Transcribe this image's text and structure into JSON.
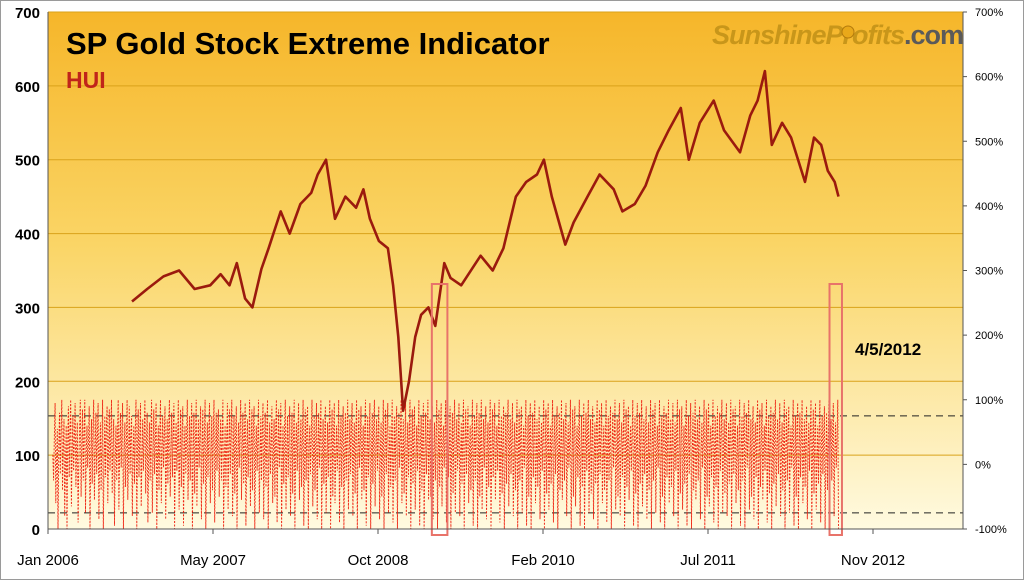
{
  "chart_data": {
    "type": "line",
    "title": "SP Gold Stock Extreme Indicator",
    "subtitle": "HUI",
    "brand": {
      "name_part1": "Sunshine",
      "name_part2": "Profits",
      "name_part3": ".com",
      "color_main": "#c8961a",
      "color_dark": "#5a5a5a"
    },
    "annotation": "4/5/2012",
    "x_ticks": [
      "Jan 2006",
      "May 2007",
      "Oct 2008",
      "Feb 2010",
      "Jul 2011",
      "Nov 2012"
    ],
    "x_range": [
      "2006-01-01",
      "2013-03-31"
    ],
    "y_left": {
      "ticks": [
        "0",
        "100",
        "200",
        "300",
        "400",
        "500",
        "600",
        "700"
      ],
      "min": 0,
      "max": 700
    },
    "y_right": {
      "ticks": [
        "-100%",
        "0%",
        "100%",
        "200%",
        "300%",
        "400%",
        "500%",
        "600%",
        "700%"
      ],
      "min": -100,
      "max": 700
    },
    "reference_lines": [
      75,
      -75
    ],
    "highlight_ranges": [
      {
        "start": "2009-01-15",
        "end": "2009-03-01"
      },
      {
        "start": "2012-03-10",
        "end": "2012-04-15"
      }
    ],
    "series": [
      {
        "color": "#9b1a0e",
        "axis": "left",
        "points": [
          [
            "2006-09-01",
            308
          ],
          [
            "2006-10-15",
            325
          ],
          [
            "2006-12-01",
            342
          ],
          [
            "2007-01-15",
            350
          ],
          [
            "2007-03-01",
            325
          ],
          [
            "2007-04-15",
            330
          ],
          [
            "2007-05-15",
            345
          ],
          [
            "2007-06-10",
            330
          ],
          [
            "2007-07-01",
            360
          ],
          [
            "2007-07-25",
            312
          ],
          [
            "2007-08-15",
            300
          ],
          [
            "2007-09-10",
            352
          ],
          [
            "2007-10-01",
            380
          ],
          [
            "2007-11-05",
            430
          ],
          [
            "2007-12-01",
            400
          ],
          [
            "2008-01-01",
            440
          ],
          [
            "2008-02-01",
            455
          ],
          [
            "2008-02-20",
            480
          ],
          [
            "2008-03-15",
            500
          ],
          [
            "2008-04-10",
            420
          ],
          [
            "2008-05-10",
            450
          ],
          [
            "2008-06-10",
            435
          ],
          [
            "2008-07-01",
            460
          ],
          [
            "2008-07-20",
            420
          ],
          [
            "2008-08-15",
            390
          ],
          [
            "2008-09-10",
            380
          ],
          [
            "2008-09-25",
            330
          ],
          [
            "2008-10-10",
            260
          ],
          [
            "2008-10-24",
            160
          ],
          [
            "2008-11-10",
            200
          ],
          [
            "2008-11-28",
            260
          ],
          [
            "2008-12-15",
            290
          ],
          [
            "2009-01-05",
            300
          ],
          [
            "2009-01-25",
            275
          ],
          [
            "2009-02-20",
            360
          ],
          [
            "2009-03-10",
            340
          ],
          [
            "2009-04-10",
            330
          ],
          [
            "2009-05-15",
            355
          ],
          [
            "2009-06-05",
            370
          ],
          [
            "2009-07-10",
            350
          ],
          [
            "2009-08-10",
            380
          ],
          [
            "2009-09-15",
            450
          ],
          [
            "2009-10-15",
            470
          ],
          [
            "2009-11-15",
            480
          ],
          [
            "2009-12-05",
            500
          ],
          [
            "2009-12-28",
            450
          ],
          [
            "2010-02-05",
            385
          ],
          [
            "2010-03-01",
            415
          ],
          [
            "2010-04-10",
            450
          ],
          [
            "2010-05-15",
            480
          ],
          [
            "2010-06-25",
            460
          ],
          [
            "2010-07-20",
            430
          ],
          [
            "2010-08-25",
            440
          ],
          [
            "2010-09-25",
            465
          ],
          [
            "2010-10-30",
            510
          ],
          [
            "2010-12-01",
            540
          ],
          [
            "2011-01-05",
            570
          ],
          [
            "2011-01-28",
            500
          ],
          [
            "2011-03-01",
            550
          ],
          [
            "2011-04-10",
            580
          ],
          [
            "2011-05-10",
            540
          ],
          [
            "2011-06-25",
            510
          ],
          [
            "2011-07-25",
            560
          ],
          [
            "2011-08-15",
            580
          ],
          [
            "2011-09-05",
            620
          ],
          [
            "2011-09-25",
            520
          ],
          [
            "2011-10-25",
            550
          ],
          [
            "2011-11-20",
            530
          ],
          [
            "2011-12-30",
            470
          ],
          [
            "2012-01-25",
            530
          ],
          [
            "2012-02-15",
            520
          ],
          [
            "2012-03-05",
            485
          ],
          [
            "2012-03-25",
            470
          ],
          [
            "2012-04-05",
            450
          ]
        ]
      }
    ],
    "oscillator": {
      "color": "#ee2211",
      "axis": "right",
      "start": "2006-01-15",
      "end": "2012-04-05",
      "clip_high": 100,
      "clip_low": -100,
      "values": [
        15,
        -25,
        40,
        95,
        -60,
        10,
        55,
        -100,
        30,
        80,
        -15,
        45,
        100,
        -40,
        20,
        70,
        -80,
        5,
        60,
        -100,
        35,
        90,
        -20,
        50,
        100,
        -65,
        15,
        75,
        -10,
        40,
        95,
        -35,
        25,
        65,
        -90,
        0,
        55,
        100,
        -50,
        30,
        85,
        -25,
        45,
        100,
        -75,
        20,
        60,
        -5,
        35,
        90,
        -100,
        10,
        70,
        -30,
        50,
        100,
        -55,
        25,
        80,
        -15,
        40,
        95,
        -85,
        15,
        65,
        -40,
        30,
        100,
        -100,
        5,
        75,
        -20,
        55,
        90,
        -60,
        20,
        85,
        -10,
        45,
        100,
        -45,
        25,
        70,
        -95,
        10,
        60,
        -25,
        40,
        100,
        -70,
        30,
        80,
        -5,
        50,
        95,
        -100,
        15,
        65,
        -35,
        35,
        100,
        -55,
        20,
        90,
        -15,
        45,
        75,
        -80,
        10,
        60,
        -30,
        55,
        100,
        -100,
        25,
        85,
        -20,
        40,
        95,
        -65,
        15,
        70,
        -10,
        50,
        100,
        -45,
        30,
        80,
        -90,
        5,
        65,
        -25,
        45,
        100,
        -75,
        20,
        85,
        -15,
        35,
        95,
        -100,
        10,
        60,
        -40,
        50,
        100,
        -60,
        25,
        75,
        -5,
        40,
        90,
        -85,
        15,
        70,
        -30,
        55,
        100,
        -50,
        20,
        80,
        -20,
        45,
        95,
        -100,
        30,
        65,
        -10,
        35,
        100,
        -70,
        15,
        85,
        -35,
        50,
        90,
        -95,
        25,
        60,
        -15,
        40,
        100,
        -55,
        10,
        75,
        -25,
        55,
        95,
        -100,
        20,
        80,
        -45,
        30,
        100,
        -65,
        15,
        70,
        -5,
        45,
        90,
        -85,
        25,
        85,
        -30,
        35,
        100,
        -100,
        10,
        65,
        -20,
        50,
        95,
        -60,
        20,
        75,
        -40,
        40,
        100,
        -90,
        15,
        80,
        -10,
        55,
        85,
        -50,
        30,
        70,
        -25,
        45,
        100,
        -100,
        5,
        60,
        -35,
        35,
        95,
        -70,
        25,
        85,
        -15,
        50,
        100,
        -80,
        20,
        75,
        -45,
        40,
        90,
        -100,
        10,
        65,
        -5,
        55,
        100,
        -55,
        30,
        80,
        -30,
        45,
        95,
        -95,
        15,
        70,
        -20,
        35,
        100,
        -65,
        25,
        85,
        -40,
        50,
        90,
        -100,
        20,
        60,
        -10,
        40,
        100,
        -75,
        10,
        75,
        -25,
        55,
        95,
        -85,
        30,
        80,
        -35,
        45,
        100,
        -100,
        15,
        65,
        -15,
        35,
        90,
        -60,
        25,
        70,
        -50,
        50,
        100,
        -90,
        20,
        85,
        -5,
        40,
        95,
        -100,
        10,
        60,
        -30,
        55,
        100,
        -70,
        30,
        75,
        -20,
        45,
        90,
        -80,
        15,
        80,
        -45,
        35,
        100,
        -100,
        25,
        65,
        -10,
        50,
        95,
        -55,
        20,
        70,
        -35,
        40,
        100,
        -95,
        10,
        85,
        -25,
        55,
        90,
        -100,
        30,
        60,
        -15,
        45,
        100,
        -65,
        15,
        75,
        -40,
        35,
        95,
        -85,
        25,
        80,
        -5,
        50,
        100,
        -100,
        20,
        70,
        -30,
        40,
        90,
        -75,
        10,
        65,
        -20,
        55,
        100,
        -100,
        30,
        85,
        -50,
        45,
        95,
        -60,
        15,
        60,
        -10,
        35,
        100,
        -90,
        25,
        75,
        -35,
        50,
        90,
        -100,
        20,
        80,
        -25,
        40,
        100,
        -70,
        10,
        70,
        -15,
        55,
        95,
        -80,
        30,
        65,
        -45,
        45,
        100,
        -100,
        15,
        85,
        -5,
        35,
        90,
        -55,
        25,
        60,
        -40,
        50,
        100,
        -95,
        20,
        75,
        -20,
        40,
        95,
        -100,
        10,
        80,
        -30,
        55,
        100,
        -65,
        30,
        70,
        -10,
        45,
        90,
        -85,
        15,
        65,
        -50,
        35,
        100,
        -100,
        25,
        85,
        -15,
        50,
        95,
        -75,
        20,
        60,
        -35,
        40,
        100,
        -90,
        10,
        75,
        -25,
        55,
        90,
        -100,
        30,
        80,
        -5,
        45,
        100,
        -60,
        15,
        70,
        -45,
        35,
        95,
        -80,
        25,
        65,
        -20,
        50,
        100,
        -100,
        20,
        85,
        -30,
        40,
        90,
        -70,
        10,
        60,
        -10,
        55,
        100,
        -95,
        30,
        75,
        -40,
        45,
        95,
        -100,
        15,
        80,
        -15,
        35,
        100,
        -55,
        25,
        70,
        -50,
        50,
        90,
        -85,
        20,
        65,
        -25,
        40,
        100,
        -100,
        10,
        85,
        -35,
        55,
        95,
        -65,
        30,
        60,
        -5,
        45,
        100,
        -90,
        15,
        75,
        -20,
        35,
        90,
        -100,
        25,
        80,
        -45,
        50,
        100,
        -75,
        20,
        70,
        -10,
        40,
        95,
        -80,
        10,
        65,
        -30,
        55,
        100,
        -100,
        30,
        85,
        -15,
        45,
        90,
        -60,
        15,
        60,
        -40,
        35,
        100,
        -95,
        25,
        75,
        -25,
        50,
        95,
        -100,
        20,
        80,
        -50,
        40,
        100,
        -70,
        10,
        70,
        -5,
        55,
        90,
        -85,
        30,
        65,
        -35,
        45,
        100,
        -100,
        15,
        85,
        -20,
        35,
        95,
        -55,
        25,
        60,
        -10,
        50,
        100,
        -90,
        20,
        75,
        -45,
        40,
        90,
        -100,
        10,
        80,
        -30,
        55,
        100,
        -65,
        30,
        70,
        -15,
        45,
        95,
        -80,
        15,
        65,
        -40,
        35,
        100,
        -100,
        25,
        85,
        -25,
        50,
        90,
        -75,
        20,
        60,
        -5,
        40,
        100,
        -95,
        10,
        75,
        -50,
        55,
        95,
        -100,
        30,
        80,
        -20,
        45,
        100,
        -60,
        15,
        70,
        -35,
        35,
        90,
        -85,
        25,
        65,
        -10,
        50,
        100,
        -100,
        20,
        85,
        -45,
        40,
        95,
        -70,
        10,
        60,
        -30,
        55,
        100,
        -90,
        30,
        75,
        -15,
        45,
        90,
        -100,
        15,
        80,
        -40,
        35,
        100,
        -55,
        25,
        70,
        -25,
        50,
        95,
        -80,
        20,
        65,
        -5,
        40,
        100,
        -100,
        10,
        85,
        -50,
        55,
        90,
        -65,
        30,
        60,
        -20,
        45,
        100,
        -95,
        15,
        75,
        -35,
        35,
        95,
        -100,
        25,
        80,
        -10,
        50,
        100,
        -75,
        20,
        70,
        -45,
        40,
        90,
        -85,
        10,
        65,
        -30,
        55,
        100,
        -100,
        30,
        85,
        -15,
        45,
        95,
        -60,
        15,
        60,
        -40,
        35,
        100,
        -90,
        25,
        75,
        -25,
        50,
        90,
        -100,
        20,
        80,
        -5,
        40,
        100,
        -70,
        10,
        70,
        -50,
        55,
        95,
        -80,
        30,
        65,
        -20,
        45,
        100,
        -100,
        15,
        85,
        -35,
        35,
        90,
        -55,
        25,
        60,
        -10,
        50,
        100,
        -95,
        20,
        75,
        -45,
        40,
        95,
        -100,
        10,
        80,
        -30,
        55,
        100,
        -65,
        30,
        70,
        -15,
        45,
        90,
        -85,
        15,
        65,
        -40,
        35,
        100,
        -100,
        25,
        85,
        -25,
        50,
        95,
        -75,
        20,
        60,
        -5,
        40,
        100,
        -90,
        10,
        75,
        -50,
        55,
        90,
        -100,
        30,
        80,
        -20,
        45,
        100,
        -60,
        15,
        70,
        -35,
        35,
        95,
        -80,
        25,
        65,
        -10,
        50,
        100,
        -100,
        20,
        85,
        -45,
        40,
        90,
        -70,
        10,
        60,
        -30,
        55,
        100,
        -95,
        30,
        75,
        -15,
        45,
        95,
        -100,
        15,
        80,
        -40,
        35,
        100,
        -55,
        25,
        70,
        -25,
        50,
        90,
        -85,
        20,
        65,
        -5,
        40,
        100,
        -100,
        10,
        85,
        -50,
        55,
        95,
        -65,
        30,
        60,
        -20,
        45,
        100,
        -90,
        15,
        75,
        -35,
        35,
        90,
        -100,
        25,
        80,
        -10,
        50,
        100,
        -75,
        20,
        70,
        -45,
        40,
        95,
        -80,
        10,
        65,
        -30,
        55,
        100,
        -100,
        30,
        85,
        -15,
        45,
        90,
        -60,
        15,
        60,
        -40,
        35,
        100,
        -95,
        25,
        75,
        -25,
        50,
        95,
        -100,
        20,
        80,
        -5,
        40,
        100,
        -70,
        10,
        70,
        -50,
        55,
        90,
        -85,
        30,
        65,
        -20,
        45,
        100,
        -100,
        15,
        85,
        -35,
        35,
        95,
        -55,
        25,
        60,
        -10,
        50,
        100,
        -90,
        20,
        75,
        -45,
        40,
        90,
        -100,
        10,
        80,
        -30,
        55,
        100,
        -65,
        30,
        70,
        -15,
        45,
        95,
        -80,
        15,
        65,
        -40,
        35,
        100,
        -100,
        25,
        85,
        -25,
        50,
        90,
        -75,
        20,
        60,
        -5,
        40,
        100,
        -95,
        10,
        75,
        -50,
        55,
        95,
        -100,
        30,
        80,
        -20,
        45,
        100,
        -60,
        15,
        70,
        -35,
        35,
        90,
        -85,
        25,
        65,
        -10,
        50,
        100,
        -100,
        20,
        85,
        -45,
        40,
        95,
        -70,
        10,
        60,
        -30,
        55,
        100,
        -90,
        30,
        75,
        -15,
        45,
        90,
        -100,
        15,
        80,
        -40,
        35,
        100,
        -55,
        25,
        70,
        -25,
        50,
        95,
        -80,
        20,
        65,
        -5,
        40,
        100,
        -100
      ]
    }
  }
}
